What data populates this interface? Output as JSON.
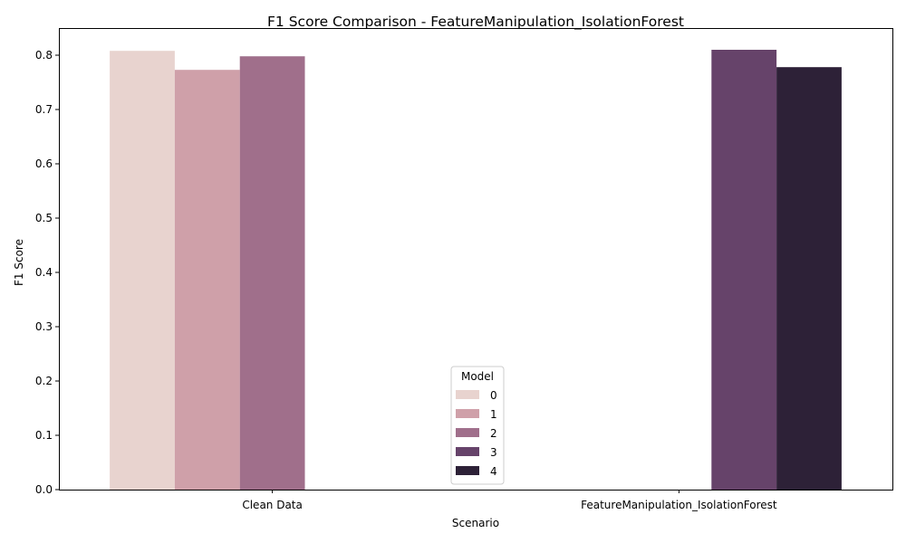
{
  "chart_data": {
    "type": "bar",
    "title": "F1 Score Comparison - FeatureManipulation_IsolationForest",
    "xlabel": "Scenario",
    "ylabel": "F1 Score",
    "categories": [
      "Clean Data",
      "FeatureManipulation_IsolationForest"
    ],
    "ylim": [
      0,
      0.85
    ],
    "yticks": [
      "0.0",
      "0.1",
      "0.2",
      "0.3",
      "0.4",
      "0.5",
      "0.6",
      "0.7",
      "0.8"
    ],
    "grid": false,
    "legend": {
      "title": "Model",
      "placement": "lower center"
    },
    "series": [
      {
        "name": "0",
        "color": "#e8d3cf",
        "values": [
          0.808,
          null
        ]
      },
      {
        "name": "1",
        "color": "#cfa0a9",
        "values": [
          0.773,
          null
        ]
      },
      {
        "name": "2",
        "color": "#a06f8b",
        "values": [
          0.798,
          null
        ]
      },
      {
        "name": "3",
        "color": "#66436a",
        "values": [
          null,
          0.81
        ]
      },
      {
        "name": "4",
        "color": "#2d2137",
        "values": [
          null,
          0.778
        ]
      }
    ]
  }
}
